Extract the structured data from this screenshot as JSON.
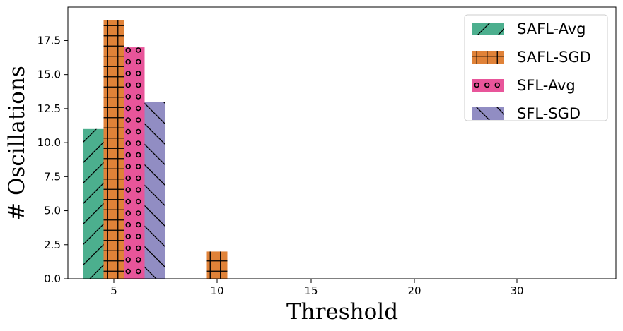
{
  "chart_data": {
    "type": "bar",
    "title": "",
    "xlabel": "Threshold",
    "ylabel": "# Oscillations",
    "categories": [
      "5",
      "10",
      "15",
      "20",
      "30"
    ],
    "ylim": [
      0,
      20
    ],
    "yticks": [
      "0.0",
      "2.5",
      "5.0",
      "7.5",
      "10.0",
      "12.5",
      "15.0",
      "17.5"
    ],
    "legend_position": "top-right",
    "grid": false,
    "series": [
      {
        "name": "SAFL-Avg",
        "color": "#4caf8e",
        "hatch": "diagonal-forward",
        "values": [
          11,
          0,
          0,
          0,
          0
        ]
      },
      {
        "name": "SAFL-SGD",
        "color": "#e08238",
        "hatch": "grid",
        "values": [
          19,
          2,
          0,
          0,
          0
        ]
      },
      {
        "name": "SFL-Avg",
        "color": "#e8559a",
        "hatch": "circles",
        "values": [
          17,
          0,
          0,
          0,
          0
        ]
      },
      {
        "name": "SFL-SGD",
        "color": "#918dc3",
        "hatch": "diagonal-back",
        "values": [
          13,
          0,
          0,
          0,
          0
        ]
      }
    ]
  }
}
